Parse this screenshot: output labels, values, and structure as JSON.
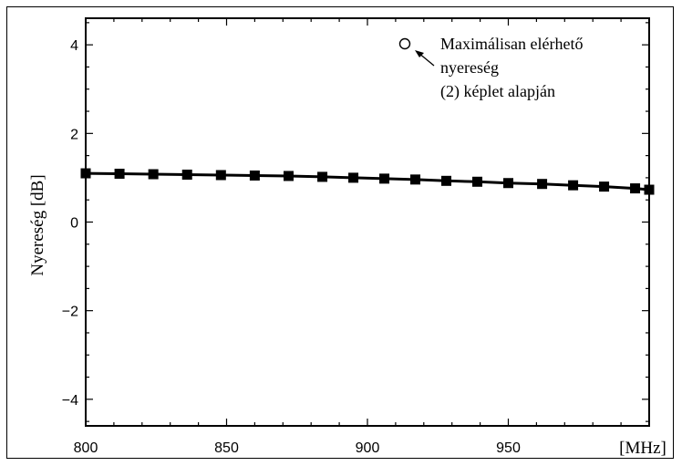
{
  "chart_data": {
    "type": "line",
    "title": "",
    "xlabel": "",
    "x_unit_label": "[MHz]",
    "ylabel": "Nyereség [dB]",
    "xlim": [
      800,
      1000
    ],
    "ylim": [
      -4.6,
      4.6
    ],
    "x_ticks": [
      800,
      850,
      900,
      950
    ],
    "x_tick_labels": [
      "800",
      "850",
      "900",
      "950"
    ],
    "y_ticks": [
      -4,
      -2,
      0,
      2,
      4
    ],
    "y_tick_labels": [
      "−4",
      "−2",
      "0",
      "2",
      "4"
    ],
    "grid": false,
    "series": [
      {
        "name": "",
        "marker": "square",
        "x": [
          800,
          812,
          824,
          836,
          848,
          860,
          872,
          884,
          895,
          906,
          917,
          928,
          939,
          950,
          962,
          973,
          984,
          995,
          1000
        ],
        "y": [
          1.1,
          1.09,
          1.08,
          1.07,
          1.06,
          1.05,
          1.04,
          1.02,
          1.0,
          0.98,
          0.96,
          0.93,
          0.91,
          0.88,
          0.86,
          0.83,
          0.8,
          0.76,
          0.73
        ]
      }
    ],
    "annotation": {
      "marker": "circle",
      "lines": [
        "Maximálisan elérhető",
        "nyereség",
        "(2) képlet alapján"
      ]
    }
  }
}
